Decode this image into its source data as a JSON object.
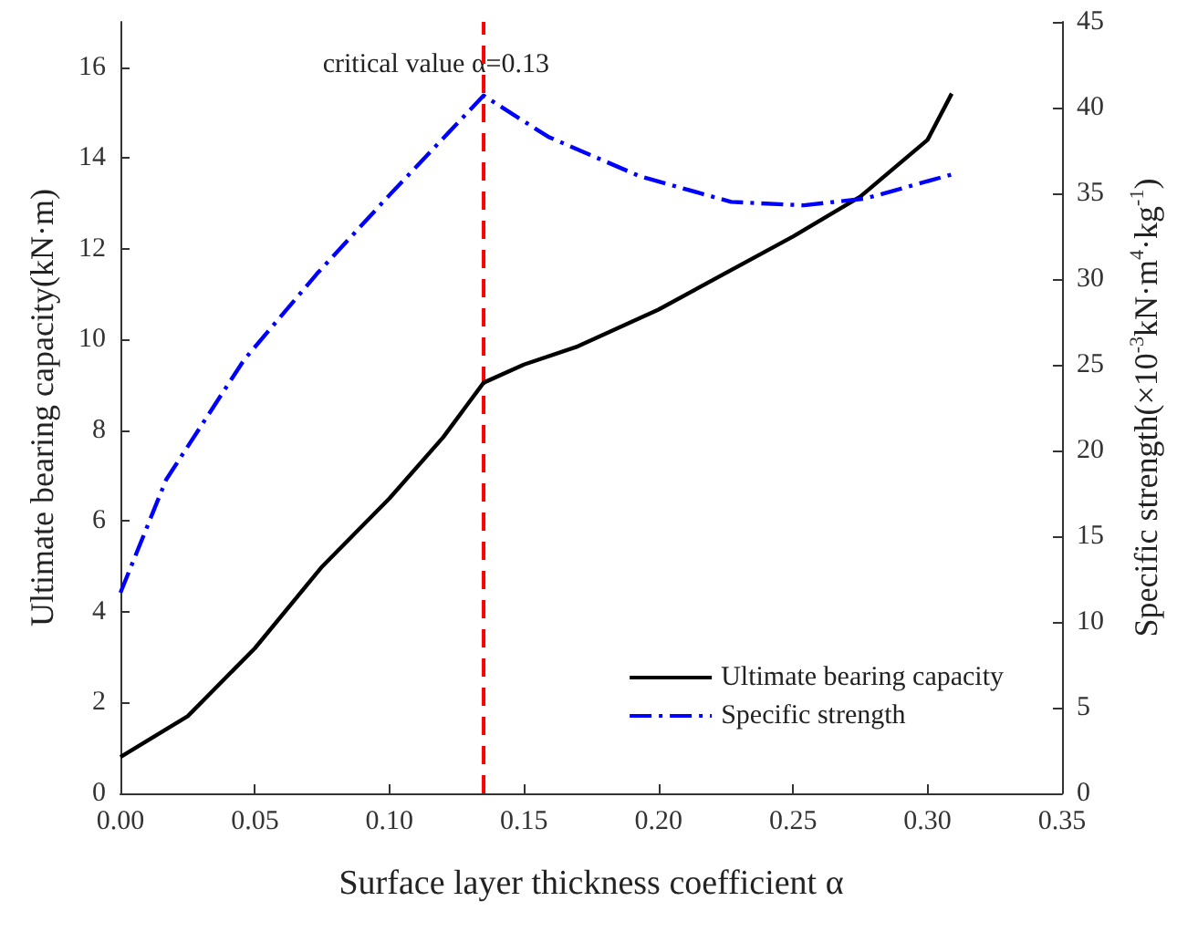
{
  "chart_data": {
    "type": "line",
    "xlabel": "Surface layer thickness coefficient α",
    "ylabel": "Ultimate bearing capacity(kN·m)",
    "y2label": "Specific strength(×10$^{-3}$kN·m$^{4}$·kg$^{-1}$)",
    "xlim": [
      0,
      0.35
    ],
    "xticks": [
      {
        "value": 0,
        "label": "0.00"
      },
      0.05,
      {
        "value": 0.1,
        "label": "0.10"
      },
      0.15,
      {
        "value": 0.2,
        "label": "0.20"
      },
      0.25,
      {
        "value": 0.3,
        "label": "0.30"
      },
      0.35
    ],
    "ylim": [
      0,
      17
    ],
    "yticks": [
      0,
      2,
      4,
      6,
      8,
      10,
      12,
      14,
      16
    ],
    "y2lim": [
      0,
      45
    ],
    "y2ticks": [
      0,
      5,
      10,
      15,
      20,
      25,
      30,
      35,
      40,
      45
    ],
    "grid": false,
    "legend": "bottom right",
    "marker": "none",
    "ref_lines": [
      {
        "axis": "x",
        "value": 0.135,
        "label": "critical value α=0.13",
        "color": "#ff0000",
        "line_style": "dashed"
      }
    ],
    "series": [
      {
        "name": "Ultimate bearing capacity",
        "color": "#000000",
        "line_style": "solid",
        "x": [
          0,
          0.025,
          0.05,
          0.075,
          0.1,
          0.12,
          0.135,
          0.15,
          0.17,
          0.2,
          0.25,
          0.275,
          0.3,
          0.309
        ],
        "values": [
          0.8,
          1.7,
          3.2,
          5.0,
          6.5,
          7.85,
          9.05,
          9.45,
          9.85,
          10.66,
          12.27,
          13.15,
          14.4,
          15.42
        ]
      },
      {
        "name": "Specific strength",
        "color": "#0000ff",
        "line_style": "dashed",
        "axis": "y2",
        "x": [
          0,
          0.017,
          0.046,
          0.073,
          0.1,
          0.135,
          0.159,
          0.193,
          0.227,
          0.254,
          0.277,
          0.309
        ],
        "values": [
          11.7,
          18.3,
          25.3,
          30.3,
          34.9,
          40.7,
          38.3,
          36.0,
          34.5,
          34.3,
          34.7,
          36.1
        ]
      }
    ]
  }
}
